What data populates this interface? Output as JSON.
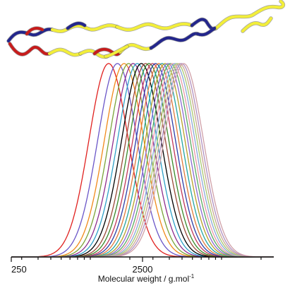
{
  "chart_data": {
    "type": "line",
    "title": "",
    "xlabel": "Molecular weight / g.mol",
    "xlabel_superscript": "-1",
    "ylabel": "",
    "x_scale": "log",
    "xlim": [
      250,
      25000
    ],
    "x_tick_labels": [
      {
        "value": 250,
        "label": "250"
      },
      {
        "value": 2500,
        "label": "2500"
      }
    ],
    "minor_ticks": [
      300,
      400,
      500,
      600,
      700,
      800,
      900,
      1000,
      2000,
      3000,
      4000,
      5000,
      6000,
      7000,
      8000,
      9000,
      10000,
      20000
    ],
    "ylim": [
      0,
      1
    ],
    "grid": false,
    "legend": "none",
    "distribution": "log-normal, normalised to peak height 1",
    "log_sigma": 0.15,
    "series": [
      {
        "peak_mw": 1380,
        "color": "#e0201e"
      },
      {
        "peak_mw": 1610,
        "color": "#6a56c8"
      },
      {
        "peak_mw": 1810,
        "color": "#f08a1a"
      },
      {
        "peak_mw": 1960,
        "color": "#7aa33a"
      },
      {
        "peak_mw": 2120,
        "color": "#8e2d8e"
      },
      {
        "peak_mw": 2280,
        "color": "#2ea0c8"
      },
      {
        "peak_mw": 2450,
        "color": "#000000"
      },
      {
        "peak_mw": 2640,
        "color": "#9a4a3a"
      },
      {
        "peak_mw": 2800,
        "color": "#3a8a2a"
      },
      {
        "peak_mw": 2980,
        "color": "#c0385a"
      },
      {
        "peak_mw": 3150,
        "color": "#2b3fa8"
      },
      {
        "peak_mw": 3330,
        "color": "#e07a3a"
      },
      {
        "peak_mw": 3520,
        "color": "#22a4a4"
      },
      {
        "peak_mw": 3720,
        "color": "#b8a02a"
      },
      {
        "peak_mw": 3900,
        "color": "#8a6ad0"
      },
      {
        "peak_mw": 4080,
        "color": "#5aaa60"
      },
      {
        "peak_mw": 4250,
        "color": "#e898a8"
      },
      {
        "peak_mw": 4430,
        "color": "#88a8d8"
      },
      {
        "peak_mw": 4600,
        "color": "#a8c870"
      },
      {
        "peak_mw": 4780,
        "color": "#c8a890"
      },
      {
        "peak_mw": 4960,
        "color": "#b090c0"
      },
      {
        "peak_mw": 5150,
        "color": "#d0a0a8"
      }
    ]
  },
  "illustration": {
    "kind": "polymer-helix-ribbon",
    "segment_colors": [
      "#f2ee3a",
      "#c71c1c",
      "#23268c"
    ]
  }
}
